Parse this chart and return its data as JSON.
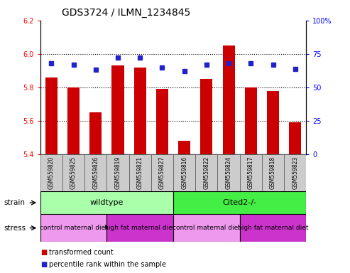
{
  "title": "GDS3724 / ILMN_1234845",
  "samples": [
    "GSM559820",
    "GSM559825",
    "GSM559826",
    "GSM559819",
    "GSM559821",
    "GSM559827",
    "GSM559816",
    "GSM559822",
    "GSM559824",
    "GSM559817",
    "GSM559818",
    "GSM559823"
  ],
  "bar_values": [
    5.86,
    5.8,
    5.65,
    5.93,
    5.92,
    5.79,
    5.48,
    5.85,
    6.05,
    5.8,
    5.78,
    5.59
  ],
  "dot_values": [
    68,
    67,
    63,
    72,
    72,
    65,
    62,
    67,
    68,
    68,
    67,
    64
  ],
  "ylim_left": [
    5.4,
    6.2
  ],
  "ylim_right": [
    0,
    100
  ],
  "yticks_left": [
    5.4,
    5.6,
    5.8,
    6.0,
    6.2
  ],
  "yticks_right": [
    0,
    25,
    50,
    75,
    100
  ],
  "bar_color": "#cc0000",
  "dot_color": "#2222cc",
  "bar_bottom": 5.4,
  "strain_groups": [
    {
      "label": "wildtype",
      "start": 0,
      "end": 6,
      "color": "#aaffaa"
    },
    {
      "label": "Cited2-/-",
      "start": 6,
      "end": 12,
      "color": "#44ee44"
    }
  ],
  "stress_groups": [
    {
      "label": "control maternal diet",
      "start": 0,
      "end": 3,
      "color": "#ee99ee"
    },
    {
      "label": "high fat maternal diet",
      "start": 3,
      "end": 6,
      "color": "#cc33cc"
    },
    {
      "label": "control maternal diet",
      "start": 6,
      "end": 9,
      "color": "#ee99ee"
    },
    {
      "label": "high fat maternal diet",
      "start": 9,
      "end": 12,
      "color": "#cc33cc"
    }
  ],
  "legend_items": [
    {
      "label": "transformed count",
      "color": "#cc0000"
    },
    {
      "label": "percentile rank within the sample",
      "color": "#2222cc"
    }
  ],
  "tick_label_fontsize": 7,
  "title_fontsize": 10,
  "sample_fontsize": 5.5,
  "group_fontsize": 8,
  "stress_fontsize": 6.5,
  "label_fontsize": 7.5
}
